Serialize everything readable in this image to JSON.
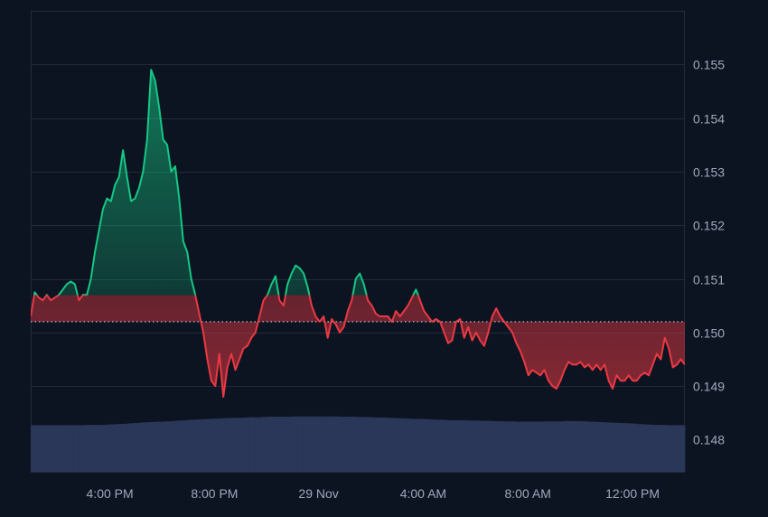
{
  "chart_data": {
    "type": "area",
    "title": "",
    "xlabel": "",
    "ylabel": "",
    "ylim": [
      147.4,
      156.0
    ],
    "y_scale_display_factor": 0.001,
    "baseline": 150.2,
    "y_ticks": [
      "0.148",
      "0.149",
      "0.150",
      "0.151",
      "0.152",
      "0.153",
      "0.154",
      "0.155"
    ],
    "x_ticks": [
      "4:00 PM",
      "8:00 PM",
      "29 Nov",
      "4:00 AM",
      "8:00 AM",
      "12:00 PM"
    ],
    "x_range": [
      "28 Nov 1:00 PM",
      "29 Nov 2:00 PM"
    ],
    "x_tick_positions": [
      0.121,
      0.281,
      0.44,
      0.6,
      0.76,
      0.92
    ],
    "grid": true,
    "legend": "none",
    "series": [
      {
        "values": [
          150.3,
          150.75,
          150.65,
          150.6,
          150.7,
          150.6,
          150.65,
          150.7,
          150.8,
          150.9,
          150.95,
          150.9,
          150.6,
          150.7,
          150.7,
          151.0,
          151.5,
          151.9,
          152.3,
          152.5,
          152.45,
          152.75,
          152.9,
          153.4,
          152.9,
          152.45,
          152.5,
          152.7,
          153.0,
          153.6,
          154.9,
          154.7,
          154.2,
          153.6,
          153.5,
          153.0,
          153.1,
          152.5,
          151.7,
          151.5,
          151.0,
          150.7,
          150.35,
          150.0,
          149.5,
          149.1,
          149.0,
          149.6,
          148.8,
          149.35,
          149.6,
          149.3,
          149.5,
          149.7,
          149.75,
          149.9,
          150.0,
          150.3,
          150.6,
          150.7,
          150.9,
          151.05,
          150.6,
          150.5,
          150.9,
          151.1,
          151.25,
          151.2,
          151.1,
          150.85,
          150.5,
          150.3,
          150.2,
          150.3,
          149.9,
          150.25,
          150.15,
          150.0,
          150.1,
          150.4,
          150.6,
          151.0,
          151.1,
          150.9,
          150.6,
          150.5,
          150.35,
          150.3,
          150.3,
          150.3,
          150.2,
          150.4,
          150.3,
          150.4,
          150.5,
          150.65,
          150.8,
          150.6,
          150.4,
          150.3,
          150.2,
          150.25,
          150.2,
          150.0,
          149.8,
          149.85,
          150.2,
          150.25,
          149.9,
          150.1,
          149.85,
          150.0,
          149.85,
          149.75,
          150.0,
          150.3,
          150.45,
          150.3,
          150.2,
          150.1,
          150.0,
          149.8,
          149.65,
          149.45,
          149.2,
          149.3,
          149.25,
          149.2,
          149.3,
          149.1,
          149.0,
          148.95,
          149.1,
          149.3,
          149.45,
          149.4,
          149.4,
          149.45,
          149.35,
          149.4,
          149.3,
          149.4,
          149.3,
          149.4,
          149.1,
          148.95,
          149.2,
          149.1,
          149.1,
          149.2,
          149.1,
          149.1,
          149.2,
          149.25,
          149.2,
          149.4,
          149.6,
          149.5,
          149.9,
          149.7,
          149.35,
          149.4,
          149.5,
          149.4
        ]
      }
    ],
    "volume": [
      17.2,
      17.2,
      17.2,
      17.2,
      17.2,
      17.2,
      17.2,
      17.2,
      17.2,
      17.3,
      17.3,
      17.3,
      17.4,
      17.5,
      17.6,
      17.7,
      17.9,
      18.0,
      18.2,
      18.3,
      18.4,
      18.5,
      18.6,
      18.7,
      18.9,
      19.0,
      19.2,
      19.3,
      19.4,
      19.5,
      19.6,
      19.7,
      19.8,
      19.9,
      19.9,
      20.0,
      20.1,
      20.1,
      20.2,
      20.3,
      20.3,
      20.3,
      20.3,
      20.4,
      20.4,
      20.4,
      20.4,
      20.4,
      20.4,
      20.4,
      20.4,
      20.3,
      20.3,
      20.3,
      20.2,
      20.2,
      20.1,
      20.0,
      20.0,
      19.9,
      19.8,
      19.7,
      19.6,
      19.5,
      19.5,
      19.4,
      19.3,
      19.2,
      19.1,
      19.0,
      19.0,
      19.0,
      18.9,
      18.9,
      18.8,
      18.8,
      18.7,
      18.7,
      18.6,
      18.6,
      18.5,
      18.5,
      18.5,
      18.5,
      18.5,
      18.6,
      18.6,
      18.6,
      18.7,
      18.7,
      18.7,
      18.6,
      18.5,
      18.4,
      18.3,
      18.2,
      18.1,
      18.0,
      17.9,
      17.8,
      17.6,
      17.5,
      17.4,
      17.3,
      17.3,
      17.2,
      17.2,
      17.2
    ]
  }
}
